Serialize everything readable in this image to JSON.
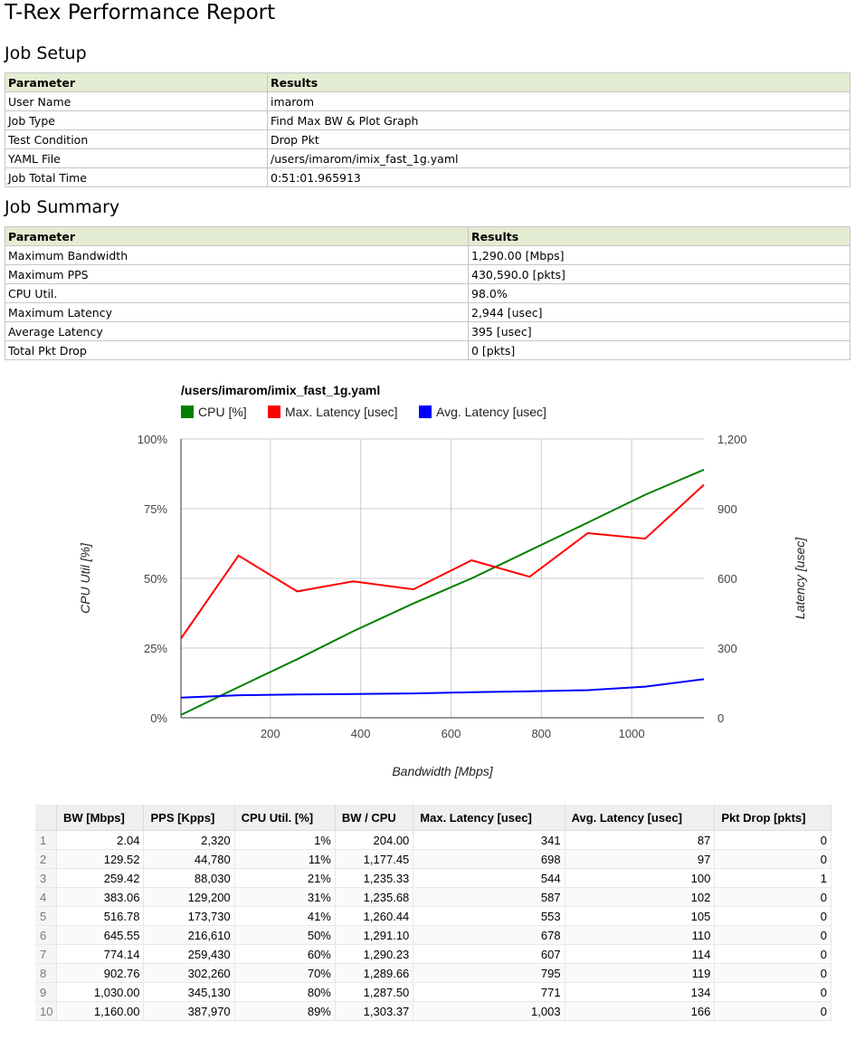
{
  "title": "T-Rex Performance Report",
  "job_setup": {
    "heading": "Job Setup",
    "col_parameter": "Parameter",
    "col_results": "Results",
    "rows": [
      {
        "param": "User Name",
        "value": "imarom"
      },
      {
        "param": "Job Type",
        "value": "Find Max BW & Plot Graph"
      },
      {
        "param": "Test Condition",
        "value": "Drop Pkt"
      },
      {
        "param": "YAML File",
        "value": "/users/imarom/imix_fast_1g.yaml"
      },
      {
        "param": "Job Total Time",
        "value": "0:51:01.965913"
      }
    ]
  },
  "job_summary": {
    "heading": "Job Summary",
    "col_parameter": "Parameter",
    "col_results": "Results",
    "rows": [
      {
        "param": "Maximum Bandwidth",
        "value": "1,290.00 [Mbps]"
      },
      {
        "param": "Maximum PPS",
        "value": "430,590.0 [pkts]"
      },
      {
        "param": "CPU Util.",
        "value": "98.0%"
      },
      {
        "param": "Maximum Latency",
        "value": "2,944 [usec]"
      },
      {
        "param": "Average Latency",
        "value": "395 [usec]"
      },
      {
        "param": "Total Pkt Drop",
        "value": "0 [pkts]"
      }
    ]
  },
  "chart_data": {
    "type": "line",
    "title": "/users/imarom/imix_fast_1g.yaml",
    "xlabel": "Bandwidth [Mbps]",
    "ylabel_left": "CPU Util [%]",
    "ylabel_right": "Latency [usec]",
    "xlim": [
      2.04,
      1160
    ],
    "x_ticks": [
      200,
      400,
      600,
      800,
      1000
    ],
    "x_tick_labels": [
      "200",
      "400",
      "600",
      "800",
      "1000"
    ],
    "ylim_left": [
      0,
      100
    ],
    "y_left_ticks": [
      0,
      25,
      50,
      75,
      100
    ],
    "y_left_tick_labels": [
      "0%",
      "25%",
      "50%",
      "75%",
      "100%"
    ],
    "ylim_right": [
      0,
      1200
    ],
    "y_right_ticks": [
      0,
      300,
      600,
      900,
      1200
    ],
    "y_right_tick_labels": [
      "0",
      "300",
      "600",
      "900",
      "1,200"
    ],
    "grid": true,
    "legend_position": "top-left",
    "x": [
      2.04,
      129.52,
      259.42,
      383.06,
      516.78,
      645.55,
      774.14,
      902.76,
      1030.0,
      1160.0
    ],
    "series": [
      {
        "name": "CPU [%]",
        "axis": "left",
        "color": "#008000",
        "values": [
          1,
          11,
          21,
          31,
          41,
          50,
          60,
          70,
          80,
          89
        ]
      },
      {
        "name": "Max. Latency [usec]",
        "axis": "right",
        "color": "#ff0000",
        "values": [
          341,
          698,
          544,
          587,
          553,
          678,
          607,
          795,
          771,
          1003
        ]
      },
      {
        "name": "Avg. Latency [usec]",
        "axis": "right",
        "color": "#0000ff",
        "values": [
          87,
          97,
          100,
          102,
          105,
          110,
          114,
          119,
          134,
          166
        ]
      }
    ]
  },
  "data_table": {
    "headers": [
      "BW [Mbps]",
      "PPS [Kpps]",
      "CPU Util. [%]",
      "BW / CPU",
      "Max. Latency [usec]",
      "Avg. Latency [usec]",
      "Pkt Drop [pkts]"
    ],
    "rows": [
      {
        "n": "1",
        "cells": [
          "2.04",
          "2,320",
          "1%",
          "204.00",
          "341",
          "87",
          "0"
        ]
      },
      {
        "n": "2",
        "cells": [
          "129.52",
          "44,780",
          "11%",
          "1,177.45",
          "698",
          "97",
          "0"
        ]
      },
      {
        "n": "3",
        "cells": [
          "259.42",
          "88,030",
          "21%",
          "1,235.33",
          "544",
          "100",
          "1"
        ]
      },
      {
        "n": "4",
        "cells": [
          "383.06",
          "129,200",
          "31%",
          "1,235.68",
          "587",
          "102",
          "0"
        ]
      },
      {
        "n": "5",
        "cells": [
          "516.78",
          "173,730",
          "41%",
          "1,260.44",
          "553",
          "105",
          "0"
        ]
      },
      {
        "n": "6",
        "cells": [
          "645.55",
          "216,610",
          "50%",
          "1,291.10",
          "678",
          "110",
          "0"
        ]
      },
      {
        "n": "7",
        "cells": [
          "774.14",
          "259,430",
          "60%",
          "1,290.23",
          "607",
          "114",
          "0"
        ]
      },
      {
        "n": "8",
        "cells": [
          "902.76",
          "302,260",
          "70%",
          "1,289.66",
          "795",
          "119",
          "0"
        ]
      },
      {
        "n": "9",
        "cells": [
          "1,030.00",
          "345,130",
          "80%",
          "1,287.50",
          "771",
          "134",
          "0"
        ]
      },
      {
        "n": "10",
        "cells": [
          "1,160.00",
          "387,970",
          "89%",
          "1,303.37",
          "1,003",
          "166",
          "0"
        ]
      }
    ]
  }
}
